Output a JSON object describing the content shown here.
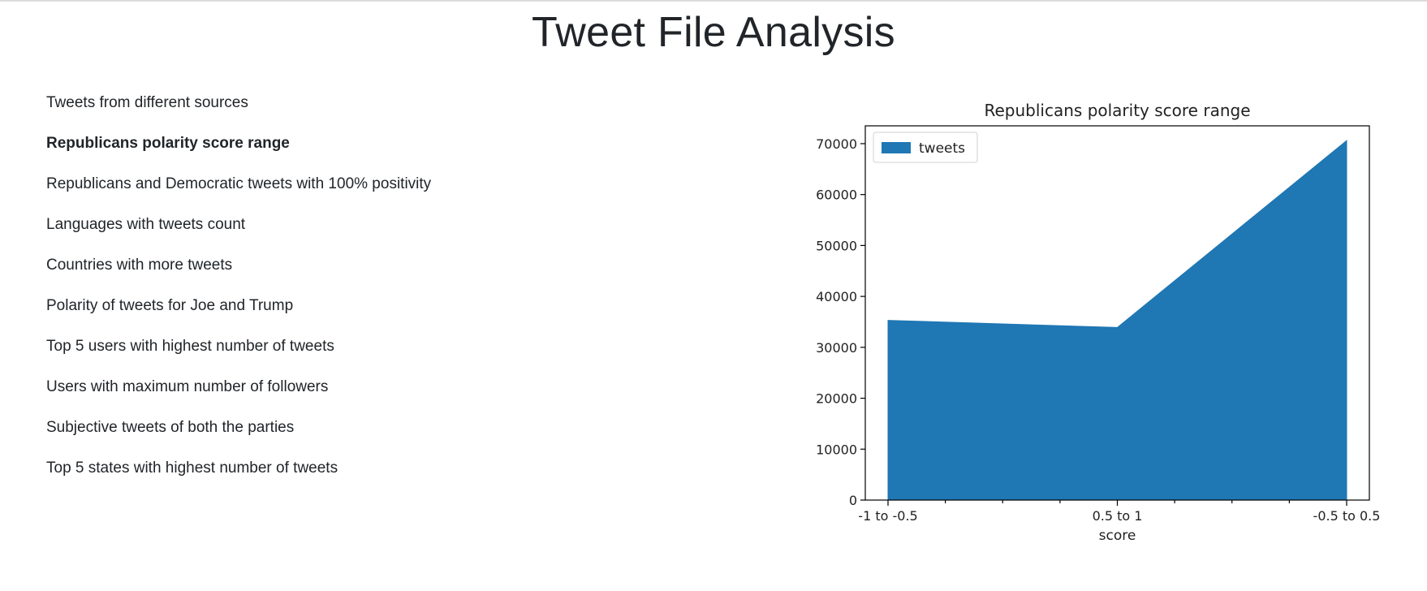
{
  "page": {
    "title": "Tweet File Analysis"
  },
  "nav": {
    "active_index": 1,
    "items": [
      {
        "label": "Tweets from different sources"
      },
      {
        "label": "Republicans polarity score range"
      },
      {
        "label": "Republicans and Democratic tweets with 100% positivity"
      },
      {
        "label": "Languages with tweets count"
      },
      {
        "label": "Countries with more tweets"
      },
      {
        "label": "Polarity of tweets for Joe and Trump"
      },
      {
        "label": "Top 5 users with highest number of tweets"
      },
      {
        "label": "Users with maximum number of followers"
      },
      {
        "label": "Subjective tweets of both the parties"
      },
      {
        "label": "Top 5 states with highest number of tweets"
      }
    ]
  },
  "chart_data": {
    "type": "area",
    "title": "Republicans polarity score range",
    "xlabel": "score",
    "ylabel": "",
    "categories": [
      "-1 to -0.5",
      "0.5 to 1",
      "-0.5 to 0.5"
    ],
    "series": [
      {
        "name": "tweets",
        "values": [
          35300,
          33900,
          70600
        ],
        "color": "#1f77b4"
      }
    ],
    "ylim": [
      0,
      73500
    ],
    "yticks": [
      0,
      10000,
      20000,
      30000,
      40000,
      50000,
      60000,
      70000
    ],
    "ytick_labels": [
      "0",
      "10000",
      "20000",
      "30000",
      "40000",
      "50000",
      "60000",
      "70000"
    ],
    "legend": "top-left",
    "grid": false
  }
}
